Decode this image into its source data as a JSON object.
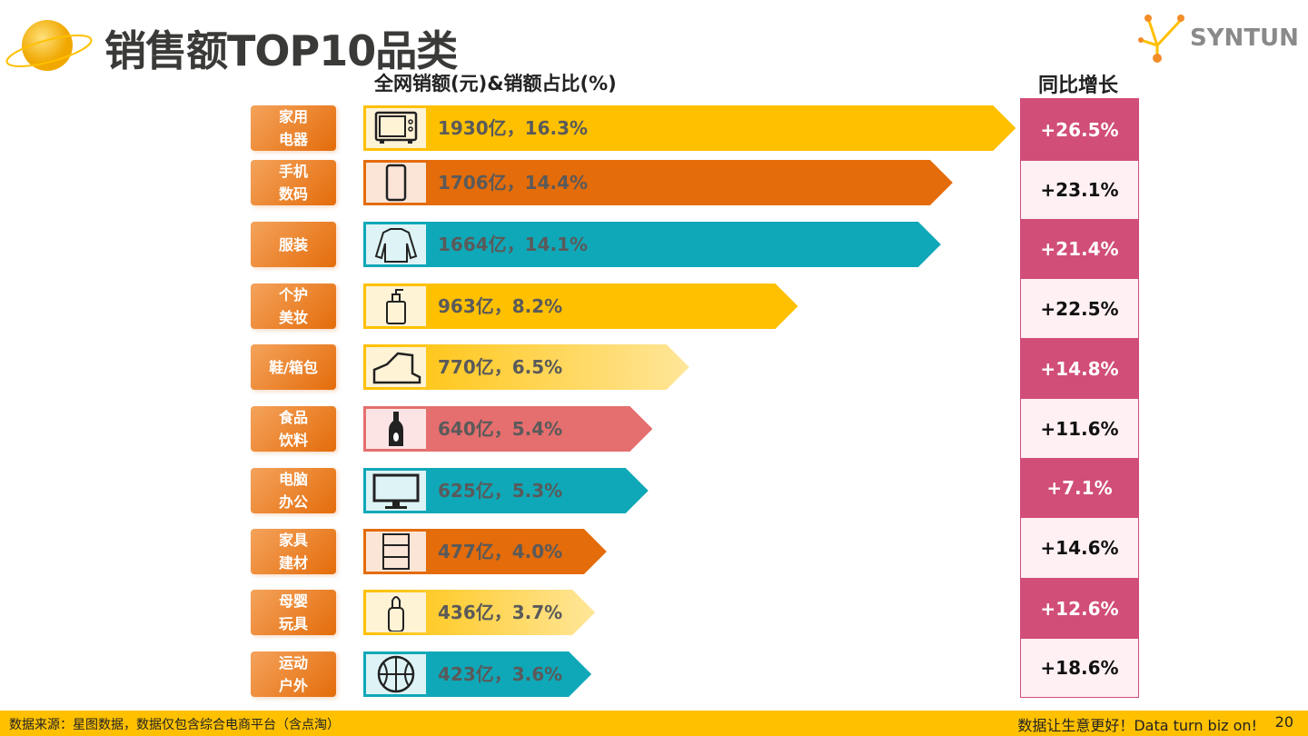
{
  "header": {
    "title": "销售额TOP10品类",
    "logo_text": "SYNTUN"
  },
  "chart_data": {
    "type": "bar",
    "title": "销售额TOP10品类",
    "value_header": "全网销额(元)&销额占比(%)",
    "growth_header": "同比增长",
    "categories": [
      "家用\n电器",
      "手机\n数码",
      "服装",
      "个护\n美妆",
      "鞋/箱包",
      "食品\n饮料",
      "电脑\n办公",
      "家具\n建材",
      "母婴\n玩具",
      "运动\n户外"
    ],
    "values_yi": [
      1930,
      1706,
      1664,
      963,
      770,
      640,
      625,
      477,
      436,
      423
    ],
    "share_pct": [
      16.3,
      14.4,
      14.1,
      8.2,
      6.5,
      5.4,
      5.3,
      4.0,
      3.7,
      3.6
    ],
    "value_labels": [
      "1930亿，16.3%",
      "1706亿，14.4%",
      "1664亿，14.1%",
      "963亿，8.2%",
      "770亿，6.5%",
      "640亿，5.4%",
      "625亿，5.3%",
      "477亿，4.0%",
      "436亿，3.7%",
      "423亿，3.6%"
    ],
    "growth_labels": [
      "+26.5%",
      "+23.1%",
      "+21.4%",
      "+22.5%",
      "+14.8%",
      "+11.6%",
      "+7.1%",
      "+14.6%",
      "+12.6%",
      "+18.6%"
    ],
    "icons": [
      "microwave-icon",
      "phone-icon",
      "hoodie-icon",
      "lotion-bottle-icon",
      "sneaker-icon",
      "bottle-icon",
      "monitor-icon",
      "cabinet-icon",
      "baby-bottle-icon",
      "basketball-icon"
    ],
    "bar_colors": [
      "#FFC000",
      "#E46C0A",
      "#0FA8B8",
      "#FFC000",
      "light-yellow",
      "#E56E6E",
      "#0FA8B8",
      "#E46C0A",
      "light-yellow",
      "#0FA8B8"
    ],
    "growth_colors": {
      "highlight": "#D14E78",
      "plain": "#FFF0F3"
    }
  },
  "footer": {
    "source": "数据来源：星图数据，数据仅包含综合电商平台（含点淘）",
    "slogan": "数据让生意更好！Data turn biz on!",
    "page": "20"
  }
}
